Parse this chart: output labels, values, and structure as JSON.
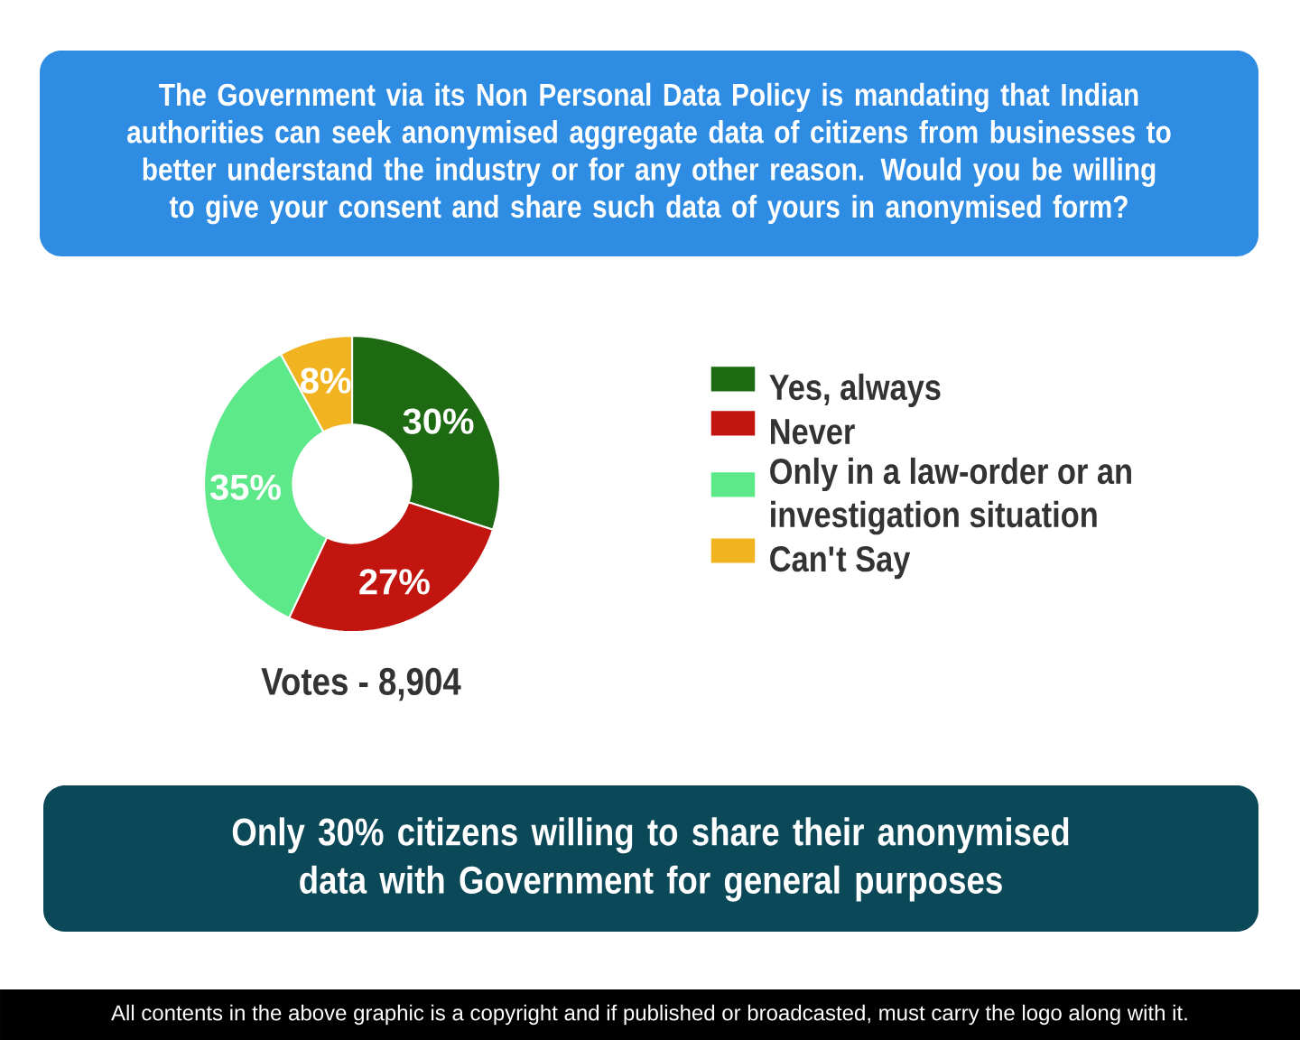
{
  "chart_data": {
    "type": "donut",
    "title": "The Government via its Non Personal Data Policy is mandating that Indian authorities can seek anonymised aggregate data of citizens from businesses to better understand the industry or for any other reason. Would you be willing to give your consent and share such data of yours in anonymised form?",
    "categories": [
      "Yes, always",
      "Never",
      "Only in a law-order or an investigation situation",
      "Can't Say"
    ],
    "values": [
      30,
      27,
      35,
      8
    ],
    "colors": [
      "#1d6a12",
      "#c3150f",
      "#5de88a",
      "#f1b320"
    ],
    "value_labels": [
      "30%",
      "27%",
      "35%",
      "8%"
    ],
    "legend": "right",
    "annotations": [
      "Votes - 8,904",
      "Only 30% citizens willing to share their anonymised data with Government for general purposes",
      "All contents in the above graphic is a copyright and if published or broadcasted, must carry the logo along with it."
    ]
  }
}
